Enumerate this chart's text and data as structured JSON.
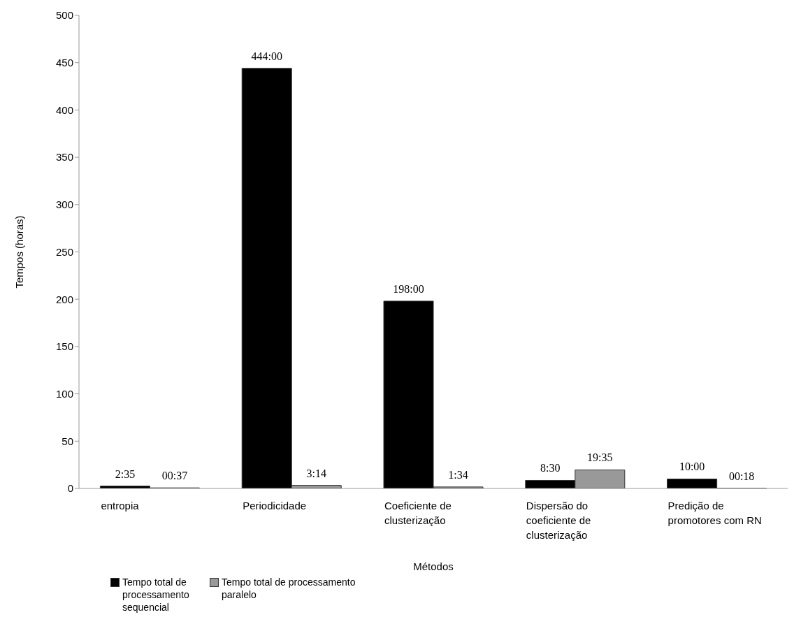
{
  "chart_data": {
    "type": "bar",
    "xlabel": "Métodos",
    "ylabel": "Tempos (horas)",
    "categories": [
      "entropia",
      "Periodicidade",
      "Coeficiente de clusterização",
      "Dispersão do coeficiente de clusterização",
      "Predição de promotores com RN"
    ],
    "series": [
      {
        "name": "Tempo total de processamento sequencial",
        "color": "#000000",
        "values": [
          2.58,
          444,
          198,
          8.5,
          10
        ],
        "value_labels": [
          "2:35",
          "444:00",
          "198:00",
          "8:30",
          "10:00"
        ]
      },
      {
        "name": "Tempo total de processamento paralelo",
        "color": "#999999",
        "values": [
          0.62,
          3.23,
          1.57,
          19.58,
          0.3
        ],
        "value_labels": [
          "00:37",
          "3:14",
          "1:34",
          "19:35",
          "00:18"
        ]
      }
    ],
    "ylim": [
      0,
      500
    ],
    "yticks": [
      0,
      50,
      100,
      150,
      200,
      250,
      300,
      350,
      400,
      450,
      500
    ],
    "grid": false,
    "legend": "bottom left"
  }
}
